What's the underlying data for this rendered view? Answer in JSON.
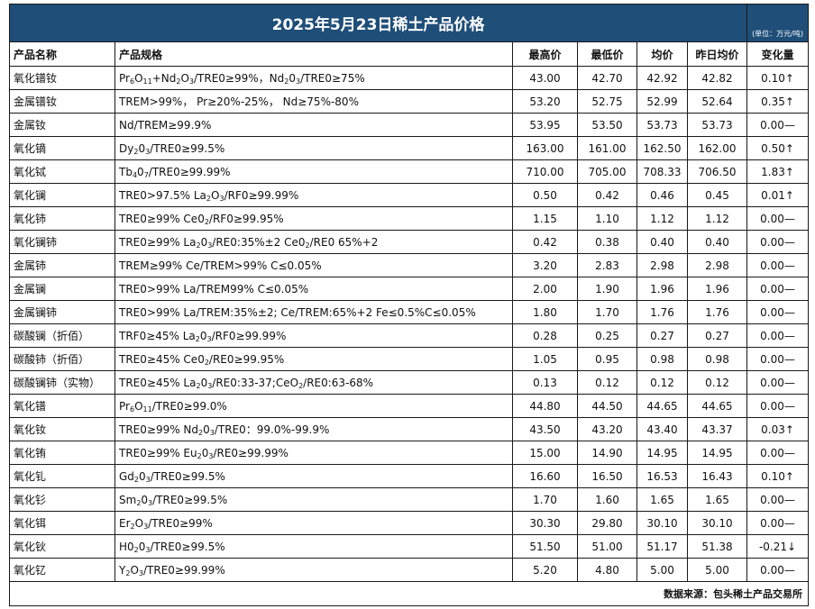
{
  "title": "2025年5月23日稀土产品价格",
  "unit": "(单位：万元/吨)",
  "headers": {
    "name": "产品名称",
    "spec": "产品规格",
    "high": "最高价",
    "low": "最低价",
    "avg": "均价",
    "prev_avg": "昨日均价",
    "change": "变化量"
  },
  "rows": [
    {
      "name": "氧化镨钕",
      "spec": "Pr<sub>6</sub>O<sub>11</sub>+Nd<sub>2</sub>O<sub>3</sub>/TRE0≥99%，Nd<sub>2</sub>0<sub>3</sub>/TRE0≥75%",
      "high": "43.00",
      "low": "42.70",
      "avg": "42.92",
      "prev_avg": "42.82",
      "change": "0.10↑"
    },
    {
      "name": "金属镨钕",
      "spec": "TREM>99%， Pr≥20%-25%， Nd≥75%-80%",
      "high": "53.20",
      "low": "52.75",
      "avg": "52.99",
      "prev_avg": "52.64",
      "change": "0.35↑"
    },
    {
      "name": "金属钕",
      "spec": "Nd/TREM≥99.9%",
      "high": "53.95",
      "low": "53.50",
      "avg": "53.73",
      "prev_avg": "53.73",
      "change": "0.00—"
    },
    {
      "name": "氧化镝",
      "spec": "Dy<sub>2</sub>0<sub>3</sub>/TRE0≥99.5%",
      "high": "163.00",
      "low": "161.00",
      "avg": "162.50",
      "prev_avg": "162.00",
      "change": "0.50↑"
    },
    {
      "name": "氧化铽",
      "spec": "Tb<sub>4</sub>0<sub>7</sub>/TRE0≥99.99%",
      "high": "710.00",
      "low": "705.00",
      "avg": "708.33",
      "prev_avg": "706.50",
      "change": "1.83↑"
    },
    {
      "name": "氧化镧",
      "spec": "TRE0>97.5%  La<sub>2</sub>O<sub>3</sub>/RF0≥99.99%",
      "high": "0.50",
      "low": "0.42",
      "avg": "0.46",
      "prev_avg": "0.45",
      "change": "0.01↑"
    },
    {
      "name": "氧化铈",
      "spec": "TRE0≥99%  Ce0<sub>2</sub>/RF0≥99.95%",
      "high": "1.15",
      "low": "1.10",
      "avg": "1.12",
      "prev_avg": "1.12",
      "change": "0.00—"
    },
    {
      "name": "氧化镧铈",
      "spec": "TRE0≥99%  La<sub>2</sub>0<sub>3</sub>/RE0:35%±2  Ce0<sub>2</sub>/RE0  65%+2",
      "high": "0.42",
      "low": "0.38",
      "avg": "0.40",
      "prev_avg": "0.40",
      "change": "0.00—"
    },
    {
      "name": "金属铈",
      "spec": "TREM≥99%   Ce/TREM>99%  C≤0.05%",
      "high": "3.20",
      "low": "2.83",
      "avg": "2.98",
      "prev_avg": "2.98",
      "change": "0.00—"
    },
    {
      "name": "金属镧",
      "spec": "TRE0>99%  La/TREM99%  C≤0.05%",
      "high": "2.00",
      "low": "1.90",
      "avg": "1.96",
      "prev_avg": "1.96",
      "change": "0.00—"
    },
    {
      "name": "金属镧铈",
      "spec": "TRE0>99%  La/TREM:35%±2; Ce/TREM:65%+2 Fe≤0.5%C≤0.05%",
      "high": "1.80",
      "low": "1.70",
      "avg": "1.76",
      "prev_avg": "1.76",
      "change": "0.00—"
    },
    {
      "name": "碳酸镧（折佰）",
      "spec": "TRF0≥45%  La<sub>2</sub>0<sub>3</sub>/RF0≥99.99%",
      "high": "0.28",
      "low": "0.25",
      "avg": "0.27",
      "prev_avg": "0.27",
      "change": "0.00—"
    },
    {
      "name": "碳酸铈（折佰）",
      "spec": "TRE0≥45%  Ce0<sub>2</sub>/RE0≥99.95%",
      "high": "1.05",
      "low": "0.95",
      "avg": "0.98",
      "prev_avg": "0.98",
      "change": "0.00—"
    },
    {
      "name": "碳酸镧铈（实物）",
      "spec": "TRE0≥45% La<sub>2</sub>0<sub>3</sub>/RE0:33-37;CeO<sub>2</sub>/RE0:63-68%",
      "high": "0.13",
      "low": "0.12",
      "avg": "0.12",
      "prev_avg": "0.12",
      "change": "0.00—"
    },
    {
      "name": "氧化镨",
      "spec": "Pr<sub>6</sub>O<sub>11</sub>/TRE0≥99.0%",
      "high": "44.80",
      "low": "44.50",
      "avg": "44.65",
      "prev_avg": "44.65",
      "change": "0.00—"
    },
    {
      "name": "氧化钕",
      "spec": "TRE0≥99%   Nd<sub>2</sub>0<sub>3</sub>/TRE0：99.0%-99.9%",
      "high": "43.50",
      "low": "43.20",
      "avg": "43.40",
      "prev_avg": "43.37",
      "change": "0.03↑"
    },
    {
      "name": "氧化铕",
      "spec": "TRE0≥99%    Eu<sub>2</sub>0<sub>3</sub>/RE0≥99.99%",
      "high": "15.00",
      "low": "14.90",
      "avg": "14.95",
      "prev_avg": "14.95",
      "change": "0.00—"
    },
    {
      "name": "氧化钆",
      "spec": "Gd<sub>2</sub>0<sub>3</sub>/TRE0≥99.5%",
      "high": "16.60",
      "low": "16.50",
      "avg": "16.53",
      "prev_avg": "16.43",
      "change": "0.10↑"
    },
    {
      "name": "氧化钐",
      "spec": "Sm<sub>2</sub>0<sub>3</sub>/TRE0≥99.5%",
      "high": "1.70",
      "low": "1.60",
      "avg": "1.65",
      "prev_avg": "1.65",
      "change": "0.00—"
    },
    {
      "name": "氧化铒",
      "spec": "Er<sub>2</sub>O<sub>3</sub>/TRE0≥99%",
      "high": "30.30",
      "low": "29.80",
      "avg": "30.10",
      "prev_avg": "30.10",
      "change": "0.00—"
    },
    {
      "name": "氧化钬",
      "spec": "H0<sub>2</sub>0<sub>3</sub>/TRE0≥99.5%",
      "high": "51.50",
      "low": "51.00",
      "avg": "51.17",
      "prev_avg": "51.38",
      "change": "-0.21↓"
    },
    {
      "name": "氧化钇",
      "spec": "Y<sub>2</sub>O<sub>3</sub>/TRE0≥99.99%",
      "high": "5.20",
      "low": "4.80",
      "avg": "5.00",
      "prev_avg": "5.00",
      "change": "0.00—"
    }
  ],
  "footer": "数据来源：包头稀土产品交易所"
}
